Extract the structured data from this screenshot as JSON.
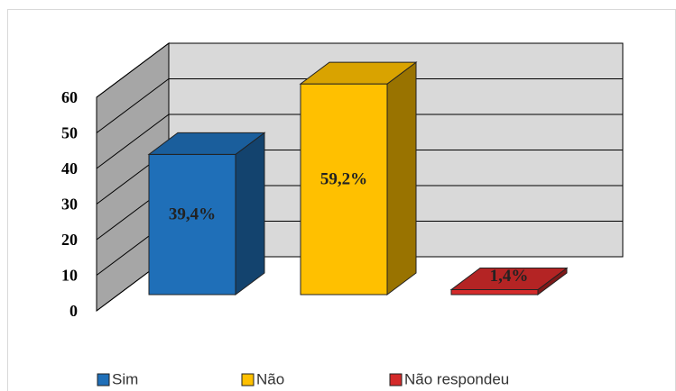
{
  "chart_data": {
    "type": "bar3d",
    "categories": [
      "Sim",
      "Não",
      "Não respondeu"
    ],
    "values": [
      39.4,
      59.2,
      1.4
    ],
    "value_labels": [
      "39,4%",
      "59,2%",
      "1,4%"
    ],
    "colors": [
      "#1f6fb8",
      "#ffc000",
      "#d42a2a"
    ],
    "ylim": [
      0,
      60
    ],
    "yticks": [
      0,
      10,
      20,
      30,
      40,
      50,
      60
    ],
    "grid": true,
    "legend": "bottom"
  }
}
